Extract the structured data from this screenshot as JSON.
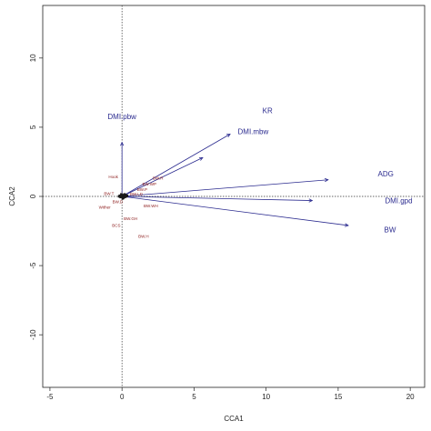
{
  "chart_data": {
    "type": "scatter",
    "title": "",
    "xlabel": "CCA1",
    "ylabel": "CCA2",
    "xlim": [
      -5.5,
      21
    ],
    "ylim": [
      -13.8,
      13.8
    ],
    "xticks": [
      -5,
      0,
      5,
      10,
      15,
      20
    ],
    "yticks": [
      -10,
      -5,
      0,
      5,
      10
    ],
    "reference_lines": {
      "x": 0,
      "y": 0,
      "style": "dotted"
    },
    "arrow_color": "#2b2b8f",
    "site_marker_color": "#1a1a1a",
    "biplot_arrows": [
      {
        "end": [
          14.3,
          1.2
        ]
      },
      {
        "end": [
          13.2,
          -0.3
        ]
      },
      {
        "end": [
          15.7,
          -2.1
        ]
      },
      {
        "end": [
          7.5,
          4.5
        ]
      },
      {
        "end": [
          5.6,
          2.8
        ]
      },
      {
        "end": [
          0.0,
          3.9
        ]
      }
    ],
    "biplot_labels": [
      {
        "text": "ADG",
        "x": 18.3,
        "y": 1.45
      },
      {
        "text": "DMI.gpd",
        "x": 19.2,
        "y": -0.5
      },
      {
        "text": "BW",
        "x": 18.6,
        "y": -2.6
      },
      {
        "text": "KR",
        "x": 10.1,
        "y": 6.0
      },
      {
        "text": "DMI.mbw",
        "x": 9.1,
        "y": 4.5
      },
      {
        "text": "DMI.pbw",
        "x": 0.0,
        "y": 5.6
      }
    ],
    "env_labels": [
      {
        "text": "Hook",
        "x": -0.6,
        "y": 1.3
      },
      {
        "text": "BW.R",
        "x": 2.5,
        "y": 1.2
      },
      {
        "text": "BW.WP",
        "x": 1.9,
        "y": 0.8
      },
      {
        "text": "BW.P",
        "x": 1.4,
        "y": 0.4
      },
      {
        "text": "BW.T",
        "x": -0.9,
        "y": 0.1
      },
      {
        "text": "BW.LD",
        "x": 1.0,
        "y": 0.05
      },
      {
        "text": "BW.D",
        "x": -0.3,
        "y": -0.5
      },
      {
        "text": "Wither",
        "x": -1.2,
        "y": -0.9
      },
      {
        "text": "BW.WH",
        "x": 2.0,
        "y": -0.8
      },
      {
        "text": "BW.GH",
        "x": 0.6,
        "y": -1.7
      },
      {
        "text": "BCS",
        "x": -0.4,
        "y": -2.2
      },
      {
        "text": "BW.H",
        "x": 1.5,
        "y": -3.0
      }
    ],
    "site_points": [
      [
        -0.15,
        0.05
      ],
      [
        -0.1,
        -0.05
      ],
      [
        0.0,
        0.0
      ],
      [
        0.05,
        0.1
      ],
      [
        0.1,
        -0.1
      ],
      [
        0.15,
        0.05
      ],
      [
        0.2,
        -0.05
      ],
      [
        0.25,
        0.1
      ],
      [
        -0.2,
        0.0
      ],
      [
        0.3,
        0.0
      ],
      [
        0.05,
        -0.15
      ],
      [
        0.18,
        0.15
      ],
      [
        -0.05,
        0.15
      ],
      [
        0.35,
        0.05
      ]
    ]
  }
}
